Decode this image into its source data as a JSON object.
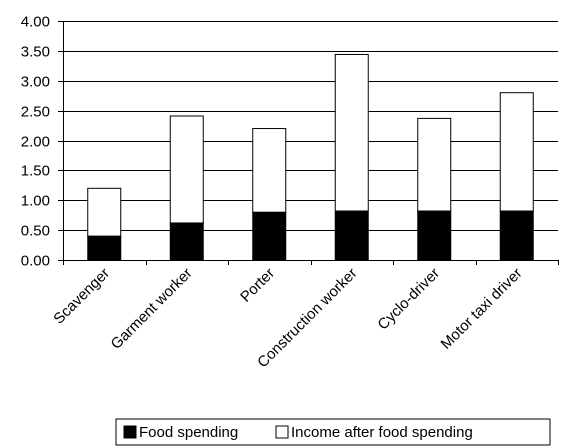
{
  "chart_data": {
    "type": "bar",
    "stacked": true,
    "categories": [
      "Scavenger",
      "Garment worker",
      "Porter",
      "Construction worker",
      "Cyclo-driver",
      "Motor taxi driver"
    ],
    "series": [
      {
        "name": "Food spending",
        "values": [
          0.4,
          0.62,
          0.8,
          0.82,
          0.82,
          0.82
        ],
        "color": "#000000"
      },
      {
        "name": "Income after food spending",
        "values": [
          0.8,
          1.79,
          1.4,
          2.62,
          1.55,
          1.98
        ],
        "color": "#ffffff"
      }
    ],
    "yticks": [
      "0.00",
      "0.50",
      "1.00",
      "1.50",
      "2.00",
      "2.50",
      "3.00",
      "3.50",
      "4.00"
    ],
    "ylim": [
      0,
      4
    ],
    "grid": true,
    "legend": "bottom"
  }
}
